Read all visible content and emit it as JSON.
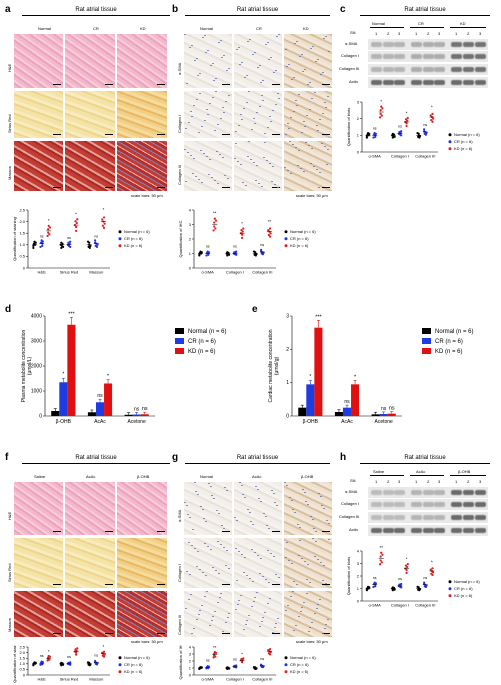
{
  "figure": {
    "panel_letters": [
      "a",
      "b",
      "c",
      "d",
      "e",
      "f",
      "g",
      "h"
    ],
    "rat_atrial_tissue": "Rat atrial tissue",
    "scale_bar": "scale bars: 50 μm",
    "row1": {
      "a_columns": [
        "Normal",
        "CR",
        "KD"
      ],
      "a_rows": [
        "H&E",
        "Sirius Red",
        "Masson"
      ],
      "b_columns": [
        "Normal",
        "CR",
        "KD"
      ],
      "b_rows": [
        "α-SMA",
        "Collagen I",
        "Collagen III"
      ],
      "c_groups": [
        "Normal",
        "CR",
        "KD"
      ],
      "blot_rows": [
        "α-SMA",
        "Collagen I",
        "Collagen III",
        "Actin"
      ],
      "sn": "SN",
      "lane_numbers": [
        "1",
        "2",
        "3",
        "1",
        "2",
        "3",
        "1",
        "2",
        "3"
      ]
    },
    "row3": {
      "f_columns": [
        "Saline",
        "AcAc",
        "β-OHB"
      ],
      "f_rows": [
        "H&E",
        "Sirius Red",
        "Masson"
      ],
      "g_columns": [
        "Normal",
        "AcAc",
        "β-OHB"
      ],
      "g_rows": [
        "α-SMA",
        "Collagen I",
        "Collagen III"
      ],
      "h_groups": [
        "Saline",
        "AcAc",
        "β-OHB"
      ]
    }
  },
  "chart_data": [
    {
      "panel": "a",
      "type": "scatter",
      "ylabel": "Quantification of staining",
      "categories": [
        "H&E",
        "Sirius Red",
        "Masson"
      ],
      "ylim": [
        0,
        2.5
      ],
      "yticks": [
        "0",
        "0.5",
        "1.0",
        "1.5",
        "2.0",
        "2.5"
      ],
      "series": [
        {
          "name": "Normal (n = 6)",
          "color": "#000000",
          "values": [
            1.0,
            1.0,
            1.0
          ]
        },
        {
          "name": "CR (n = 6)",
          "color": "#2233dd",
          "values": [
            1.05,
            1.0,
            1.05
          ]
        },
        {
          "name": "KD (n = 6)",
          "color": "#e02020",
          "values": [
            1.6,
            1.85,
            2.0
          ]
        }
      ],
      "annotations": [
        "ns",
        "*",
        "ns",
        "*",
        "ns",
        "*"
      ]
    },
    {
      "panel": "b",
      "type": "scatter",
      "ylabel": "Quantification of IHC",
      "categories": [
        "α-SMA",
        "Collagen I",
        "Collagen III"
      ],
      "ylim": [
        0,
        4
      ],
      "yticks": [
        "0",
        "1",
        "2",
        "3",
        "4"
      ],
      "series": [
        {
          "name": "Normal (n = 6)",
          "color": "#000000",
          "values": [
            1.0,
            1.0,
            1.0
          ]
        },
        {
          "name": "CR (n = 6)",
          "color": "#2233dd",
          "values": [
            1.0,
            1.0,
            1.1
          ]
        },
        {
          "name": "KD (n = 6)",
          "color": "#e02020",
          "values": [
            3.0,
            2.4,
            2.5
          ]
        }
      ],
      "annotations": [
        "ns",
        "**",
        "ns",
        "*",
        "ns",
        "**"
      ]
    },
    {
      "panel": "c",
      "type": "scatter",
      "ylabel": "Quantification of blots",
      "categories": [
        "α-SMA",
        "Collagen I",
        "Collagen III"
      ],
      "ylim": [
        0,
        3
      ],
      "yticks": [
        "0",
        "1",
        "2",
        "3"
      ],
      "series": [
        {
          "name": "Normal (n = 6)",
          "color": "#000000",
          "values": [
            1.0,
            1.0,
            1.0
          ]
        },
        {
          "name": "CR (n = 6)",
          "color": "#2233dd",
          "values": [
            1.0,
            1.1,
            1.2
          ]
        },
        {
          "name": "KD (n = 6)",
          "color": "#e02020",
          "values": [
            2.4,
            1.8,
            2.1
          ]
        }
      ],
      "annotations": [
        "ns",
        "*",
        "ns",
        "*",
        "ns",
        "*"
      ]
    },
    {
      "panel": "d",
      "type": "bar",
      "ylabel": "Plasma metabolite concentration (μmol/L)",
      "categories": [
        "β-OHB",
        "AcAc",
        "Acetone"
      ],
      "ylim": [
        0,
        4000
      ],
      "yticks": [
        "0",
        "1000",
        "2000",
        "3000",
        "4000"
      ],
      "series": [
        {
          "name": "Normal (n = 6)",
          "color": "#000000",
          "values": [
            200,
            150,
            50
          ]
        },
        {
          "name": "CR (n = 6)",
          "color": "#1f3ce0",
          "values": [
            1350,
            550,
            60
          ]
        },
        {
          "name": "KD (n = 6)",
          "color": "#e01010",
          "values": [
            3650,
            1300,
            70
          ]
        }
      ],
      "annotations": [
        "*",
        "***",
        "ns",
        "*",
        "ns",
        "ns"
      ]
    },
    {
      "panel": "e",
      "type": "bar",
      "ylabel": "Cardiac metabolite concentration (μmol/g)",
      "categories": [
        "β-OHB",
        "AcAc",
        "Acetone"
      ],
      "ylim": [
        0,
        3
      ],
      "yticks": [
        "0",
        "1",
        "2",
        "3"
      ],
      "series": [
        {
          "name": "Normal (n = 6)",
          "color": "#000000",
          "values": [
            0.25,
            0.12,
            0.05
          ]
        },
        {
          "name": "CR (n = 6)",
          "color": "#1f3ce0",
          "values": [
            0.95,
            0.25,
            0.06
          ]
        },
        {
          "name": "KD (n = 6)",
          "color": "#e01010",
          "values": [
            2.65,
            0.95,
            0.07
          ]
        }
      ],
      "annotations": [
        "*",
        "***",
        "ns",
        "*",
        "ns",
        "ns"
      ]
    },
    {
      "panel": "f",
      "type": "scatter",
      "ylabel": "Quantification of staining",
      "categories": [
        "H&E",
        "Sirius Red",
        "Masson"
      ],
      "ylim": [
        0,
        2.5
      ],
      "yticks": [
        "0",
        "0.5",
        "1.0",
        "1.5",
        "2.0",
        "2.5"
      ],
      "series": [
        {
          "name": "Normal (n = 6)",
          "color": "#000000",
          "values": [
            1.0,
            1.0,
            1.0
          ]
        },
        {
          "name": "CR (n = 6)",
          "color": "#2233dd",
          "values": [
            1.05,
            1.0,
            1.1
          ]
        },
        {
          "name": "KD (n = 6)",
          "color": "#e02020",
          "values": [
            1.5,
            2.1,
            1.9
          ]
        }
      ],
      "annotations": [
        "ns",
        "*",
        "ns",
        "*",
        "ns",
        "*"
      ]
    },
    {
      "panel": "g",
      "type": "scatter",
      "ylabel": "Quantification of IHC",
      "categories": [
        "α-SMA",
        "Collagen I",
        "Collagen III"
      ],
      "ylim": [
        0,
        4
      ],
      "yticks": [
        "0",
        "1",
        "2",
        "3",
        "4"
      ],
      "series": [
        {
          "name": "Normal (n = 6)",
          "color": "#000000",
          "values": [
            1.0,
            1.0,
            1.0
          ]
        },
        {
          "name": "CR (n = 6)",
          "color": "#2233dd",
          "values": [
            1.1,
            1.2,
            1.3
          ]
        },
        {
          "name": "KD (n = 6)",
          "color": "#e02020",
          "values": [
            2.9,
            2.1,
            3.4
          ]
        }
      ],
      "annotations": [
        "ns",
        "**",
        "ns",
        "*",
        "ns",
        "**"
      ]
    },
    {
      "panel": "h",
      "type": "scatter",
      "ylabel": "Quantification of blots",
      "categories": [
        "α-SMA",
        "Collagen I",
        "Collagen III"
      ],
      "ylim": [
        0,
        4
      ],
      "yticks": [
        "0",
        "1",
        "2",
        "3",
        "4"
      ],
      "series": [
        {
          "name": "Normal (n = 6)",
          "color": "#000000",
          "values": [
            1.0,
            1.0,
            1.0
          ]
        },
        {
          "name": "CR (n = 6)",
          "color": "#2233dd",
          "values": [
            1.3,
            1.2,
            1.3
          ]
        },
        {
          "name": "KD (n = 6)",
          "color": "#e02020",
          "values": [
            3.4,
            2.6,
            2.4
          ]
        }
      ],
      "annotations": [
        "ns",
        "**",
        "ns",
        "*",
        "ns",
        "*"
      ]
    }
  ]
}
